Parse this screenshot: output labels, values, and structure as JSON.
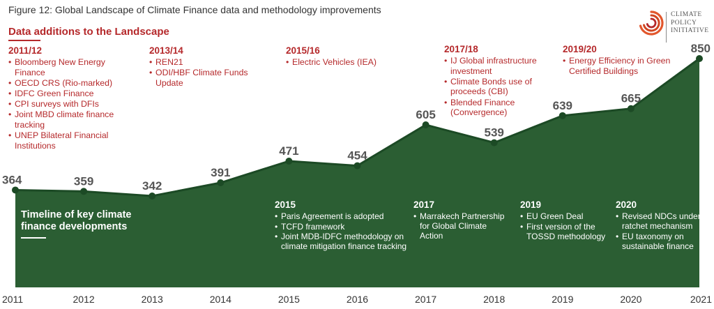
{
  "title": "Figure 12: Global Landscape of Climate Finance data and methodology improvements",
  "subtitle": "Data additions to the Landscape",
  "logo": {
    "line1": "CLIMATE",
    "line2": "POLICY",
    "line3": "INITIATIVE"
  },
  "colors": {
    "area": "#2b5e33",
    "line": "#1c4a25",
    "accent": "#b5292b",
    "value_label": "#555555"
  },
  "chart_data": {
    "type": "area",
    "x": [
      "2011",
      "2012",
      "2013",
      "2014",
      "2015",
      "2016",
      "2017",
      "2018",
      "2019",
      "2020",
      "2021"
    ],
    "values": [
      364,
      359,
      342,
      391,
      471,
      454,
      605,
      539,
      639,
      665,
      850
    ],
    "value_labels": [
      "364",
      "359",
      "342",
      "391",
      "471",
      "454",
      "605",
      "539",
      "639",
      "665",
      "850"
    ],
    "xlabel": "",
    "ylabel": ""
  },
  "data_additions": [
    {
      "year": "2011/12",
      "items": [
        "Bloomberg New Energy Finance",
        "OECD CRS (Rio-marked)",
        "IDFC Green Finance",
        "CPI surveys with DFIs",
        "Joint MBD climate finance tracking",
        "UNEP Bilateral Financial Institutions"
      ]
    },
    {
      "year": "2013/14",
      "items": [
        "REN21",
        "ODI/HBF Climate Funds Update"
      ]
    },
    {
      "year": "2015/16",
      "items": [
        "Electric Vehicles (IEA)"
      ]
    },
    {
      "year": "2017/18",
      "items": [
        "IJ Global infrastructure investment",
        "Climate Bonds use of proceeds (CBI)",
        "Blended Finance (Convergence)"
      ]
    },
    {
      "year": "2019/20",
      "items": [
        "Energy Efficiency in Green Certified Buildings"
      ]
    }
  ],
  "timeline": {
    "title": "Timeline of key climate finance developments",
    "events": [
      {
        "year": "2015",
        "items": [
          "Paris Agreement is adopted",
          "TCFD framework",
          "Joint MDB-IDFC methodology on climate mitigation finance tracking"
        ]
      },
      {
        "year": "2017",
        "items": [
          "Marrakech Partnership for Global Climate Action"
        ]
      },
      {
        "year": "2019",
        "items": [
          "EU Green Deal",
          "First version of the TOSSD methodology"
        ]
      },
      {
        "year": "2020",
        "items": [
          "Revised NDCs under ratchet mechanism",
          "EU taxonomy on sustainable finance"
        ]
      }
    ]
  }
}
